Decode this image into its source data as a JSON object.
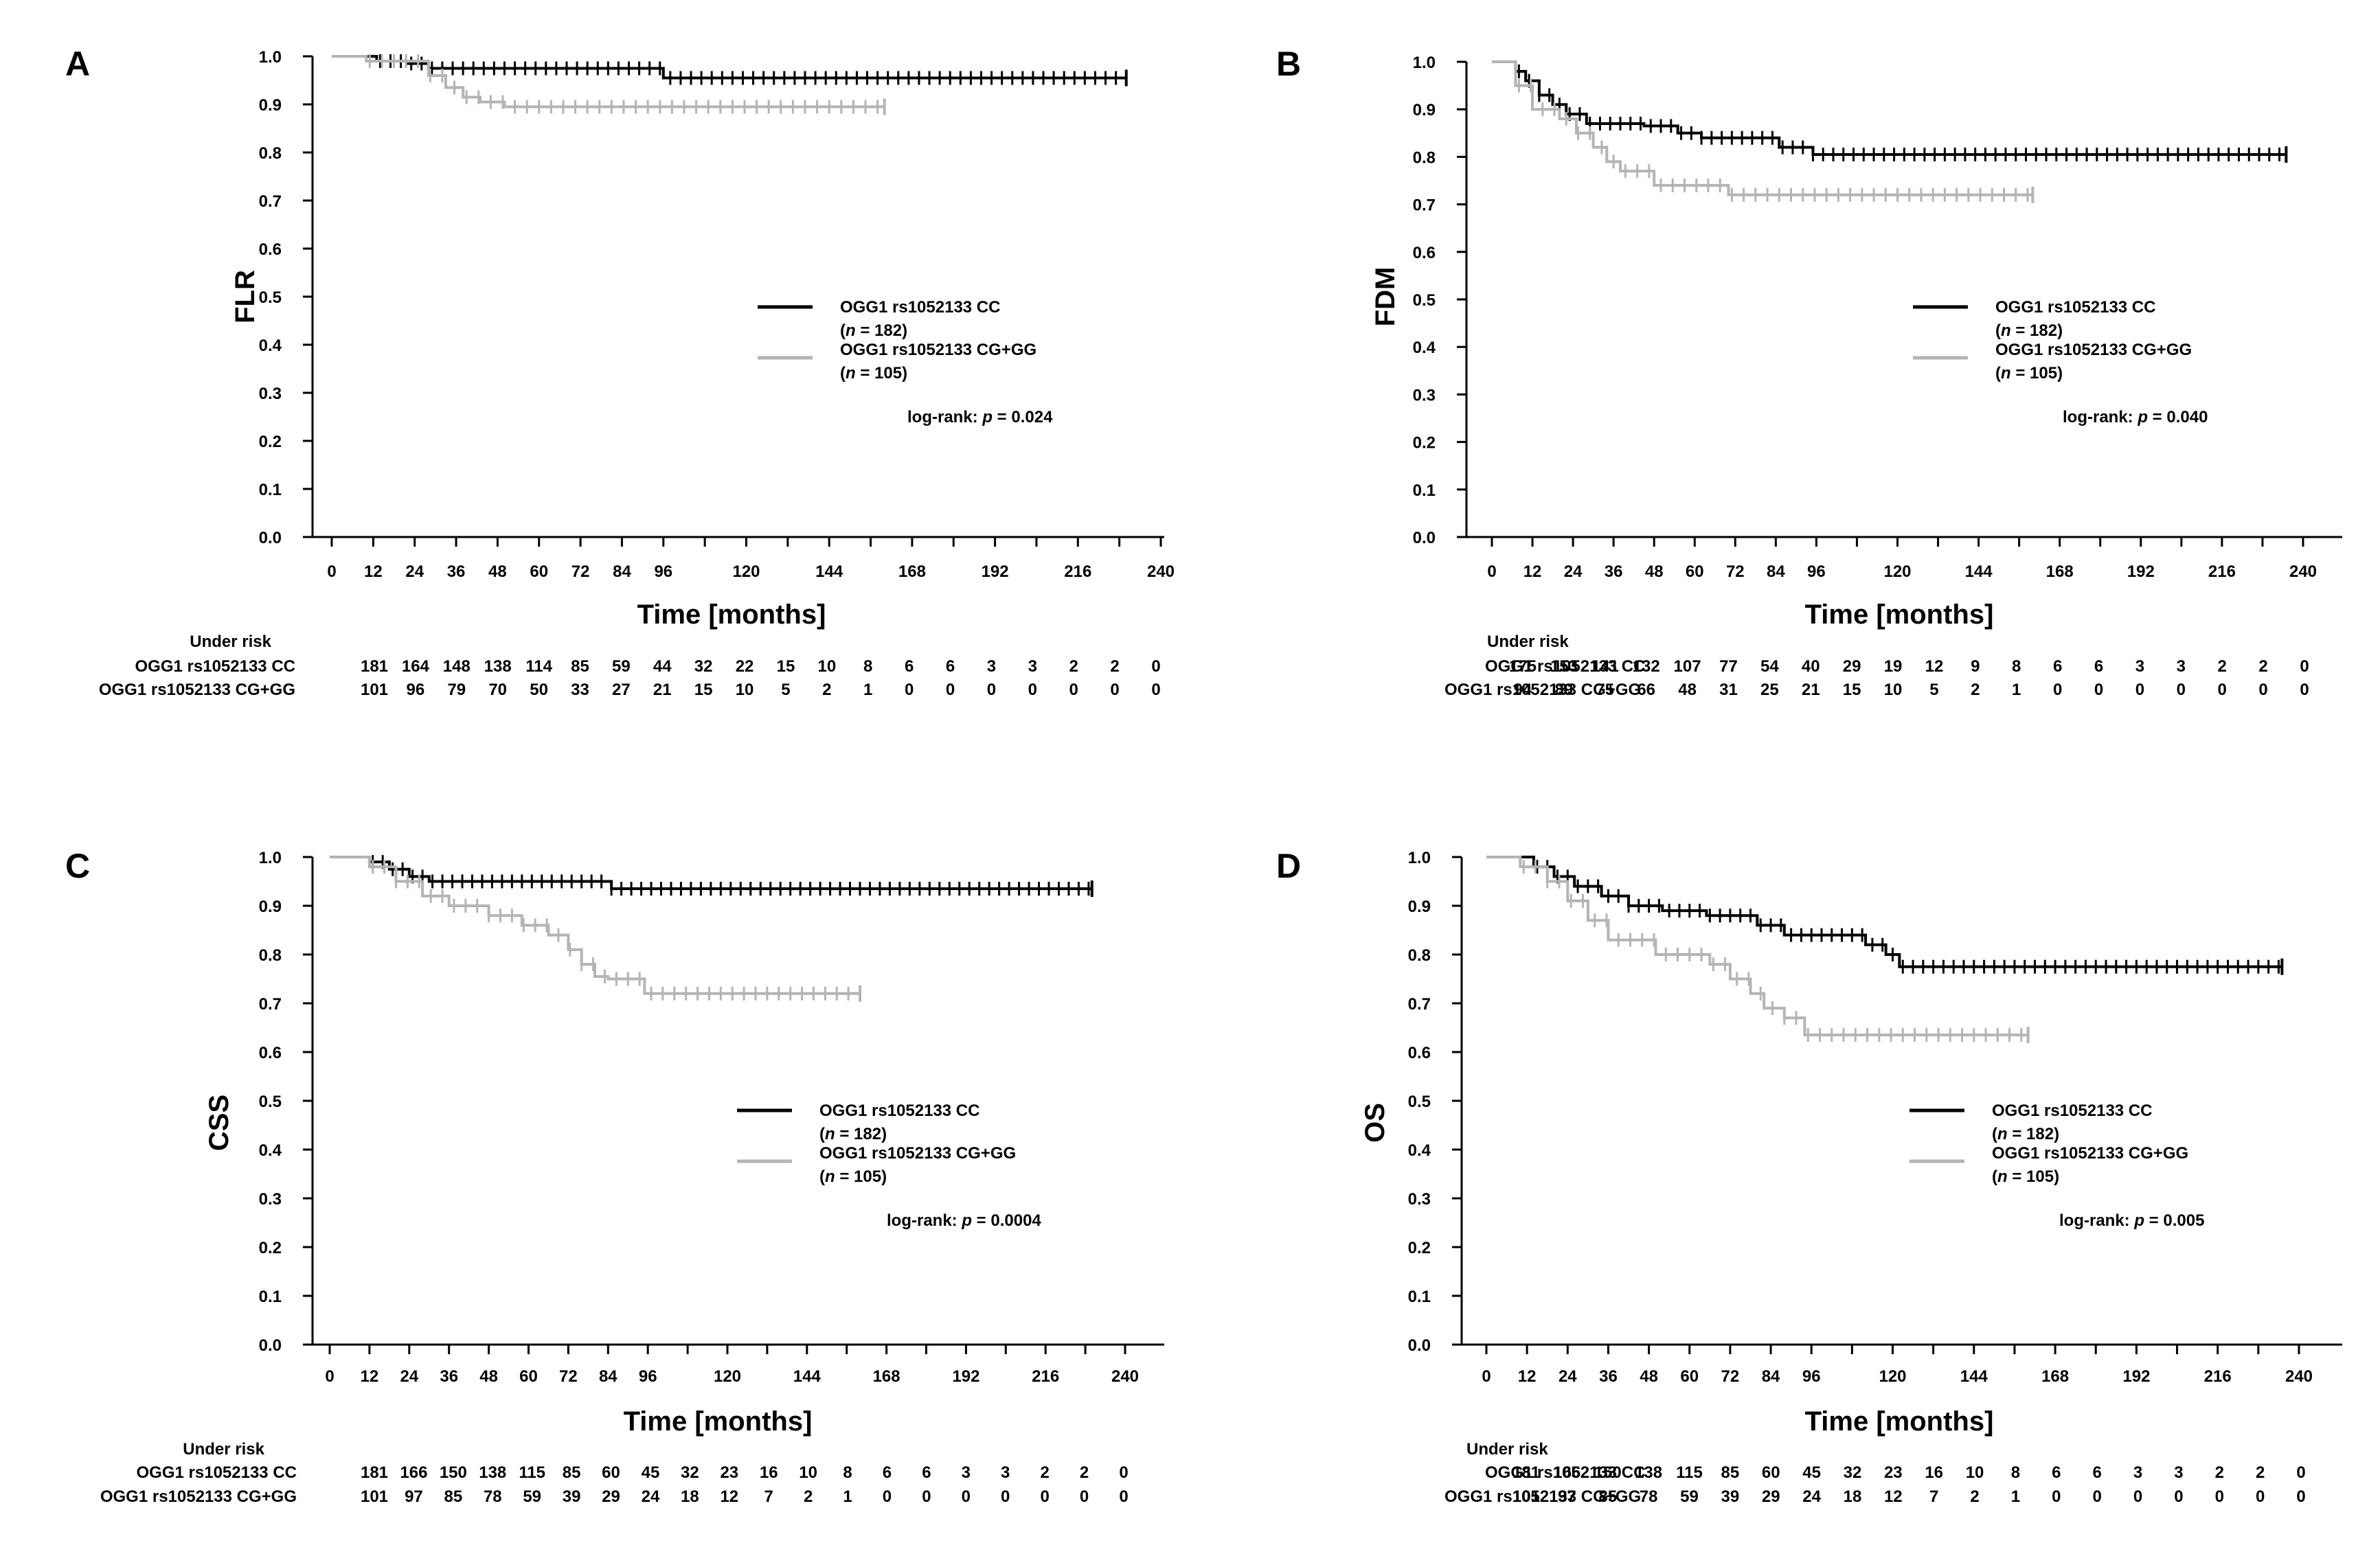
{
  "colors": {
    "cc": "#000000",
    "cg": "#b4b4b4"
  },
  "chart_data": [
    {
      "type": "line",
      "panel": "A",
      "ylabel": "FLR",
      "xlabel": "Time [months]",
      "ylim": [
        0,
        1
      ],
      "xlim": [
        0,
        240
      ],
      "yticks": [
        "0.0",
        "0.1",
        "0.2",
        "0.3",
        "0.4",
        "0.5",
        "0.6",
        "0.7",
        "0.8",
        "0.9",
        "1.0"
      ],
      "xticks": [
        "0",
        "12",
        "24",
        "36",
        "48",
        "60",
        "72",
        "84",
        "96",
        "120",
        "144",
        "168",
        "192",
        "216",
        "240"
      ],
      "series": [
        {
          "name": "OGG1 rs1052133 CC",
          "n": "182",
          "color": "#000000",
          "x": [
            0,
            13,
            22,
            28,
            96,
            230
          ],
          "y": [
            1.0,
            0.99,
            0.985,
            0.975,
            0.955,
            0.955
          ]
        },
        {
          "name": "OGG1 rs1052133 CG+GG",
          "n": "105",
          "color": "#b4b4b4",
          "x": [
            0,
            10,
            28,
            33,
            38,
            43,
            50,
            160
          ],
          "y": [
            1.0,
            0.99,
            0.96,
            0.935,
            0.915,
            0.905,
            0.895,
            0.895
          ]
        }
      ],
      "legend": {
        "cc_label": "OGG1 rs1052133 CC",
        "cc_n_prefix": "n",
        "cc_n_rest": "= 182",
        "cg_label": "OGG1 rs1052133 CG+GG",
        "cg_n_prefix": "n",
        "cg_n_rest": "= 105",
        "logrank": "log-rank: ",
        "p_symbol": "p",
        "p_value": " = 0.024"
      },
      "under_risk": {
        "title": "Under risk",
        "row1_label": "OGG1 rs1052133 CC",
        "row1": [
          "181",
          "164",
          "148",
          "138",
          "114",
          "85",
          "59",
          "44",
          "32",
          "22",
          "15",
          "10",
          "8",
          "6",
          "6",
          "3",
          "3",
          "2",
          "2",
          "0"
        ],
        "row2_label": "OGG1 rs1052133 CG+GG",
        "row2": [
          "101",
          "96",
          "79",
          "70",
          "50",
          "33",
          "27",
          "21",
          "15",
          "10",
          "5",
          "2",
          "1",
          "0",
          "0",
          "0",
          "0",
          "0",
          "0",
          "0"
        ]
      }
    },
    {
      "type": "line",
      "panel": "B",
      "ylabel": "FDM",
      "xlabel": "Time [months]",
      "ylim": [
        0,
        1
      ],
      "xlim": [
        0,
        240
      ],
      "yticks": [
        "0.0",
        "0.1",
        "0.2",
        "0.3",
        "0.4",
        "0.5",
        "0.6",
        "0.7",
        "0.8",
        "0.9",
        "1.0"
      ],
      "xticks": [
        "0",
        "12",
        "24",
        "36",
        "48",
        "60",
        "72",
        "84",
        "96",
        "120",
        "144",
        "168",
        "192",
        "216",
        "240"
      ],
      "series": [
        {
          "name": "OGG1 rs1052133 CC",
          "n": "182",
          "color": "#000000",
          "x": [
            0,
            7,
            10,
            14,
            18,
            22,
            28,
            45,
            55,
            62,
            85,
            95,
            235
          ],
          "y": [
            1.0,
            0.98,
            0.96,
            0.93,
            0.91,
            0.89,
            0.87,
            0.865,
            0.85,
            0.84,
            0.82,
            0.805,
            0.805
          ]
        },
        {
          "name": "OGG1 rs1052133 CG+GG",
          "n": "105",
          "color": "#b4b4b4",
          "x": [
            0,
            7,
            12,
            20,
            25,
            30,
            34,
            38,
            48,
            70,
            160
          ],
          "y": [
            1.0,
            0.95,
            0.9,
            0.88,
            0.85,
            0.82,
            0.79,
            0.77,
            0.74,
            0.72,
            0.72
          ]
        }
      ],
      "legend": {
        "cc_label": "OGG1 rs1052133 CC",
        "cc_n_prefix": "n",
        "cc_n_rest": "= 182",
        "cg_label": "OGG1 rs1052133 CG+GG",
        "cg_n_prefix": "n",
        "cg_n_rest": "= 105",
        "logrank": "log-rank: ",
        "p_symbol": "p",
        "p_value": " = 0.040"
      },
      "under_risk": {
        "title": "Under risk",
        "row1_label": "OGG1 rs1052133 CC",
        "row1": [
          "175",
          "153",
          "141",
          "132",
          "107",
          "77",
          "54",
          "40",
          "29",
          "19",
          "12",
          "9",
          "8",
          "6",
          "6",
          "3",
          "3",
          "2",
          "2",
          "0"
        ],
        "row2_label": "OGG1 rs1052133 CG+GG",
        "row2": [
          "94",
          "89",
          "75",
          "66",
          "48",
          "31",
          "25",
          "21",
          "15",
          "10",
          "5",
          "2",
          "1",
          "0",
          "0",
          "0",
          "0",
          "0",
          "0",
          "0"
        ]
      }
    },
    {
      "type": "line",
      "panel": "C",
      "ylabel": "CSS",
      "xlabel": "Time [months]",
      "ylim": [
        0,
        1
      ],
      "xlim": [
        0,
        240
      ],
      "yticks": [
        "0.0",
        "0.1",
        "0.2",
        "0.3",
        "0.4",
        "0.5",
        "0.6",
        "0.7",
        "0.8",
        "0.9",
        "1.0"
      ],
      "xticks": [
        "0",
        "12",
        "24",
        "36",
        "48",
        "60",
        "72",
        "84",
        "96",
        "120",
        "144",
        "168",
        "192",
        "216",
        "240"
      ],
      "series": [
        {
          "name": "OGG1 rs1052133 CC",
          "n": "182",
          "color": "#000000",
          "x": [
            0,
            12,
            18,
            24,
            30,
            85,
            230
          ],
          "y": [
            1.0,
            0.99,
            0.975,
            0.96,
            0.95,
            0.935,
            0.935
          ]
        },
        {
          "name": "OGG1 rs1052133 CG+GG",
          "n": "105",
          "color": "#b4b4b4",
          "x": [
            0,
            12,
            20,
            28,
            36,
            48,
            58,
            66,
            72,
            76,
            80,
            84,
            95,
            160
          ],
          "y": [
            1.0,
            0.98,
            0.95,
            0.92,
            0.9,
            0.88,
            0.86,
            0.84,
            0.81,
            0.78,
            0.755,
            0.75,
            0.72,
            0.72
          ]
        }
      ],
      "legend": {
        "cc_label": "OGG1 rs1052133 CC",
        "cc_n_prefix": "n",
        "cc_n_rest": "= 182",
        "cg_label": "OGG1 rs1052133 CG+GG",
        "cg_n_prefix": "n",
        "cg_n_rest": "= 105",
        "logrank": "log-rank: ",
        "p_symbol": "p",
        "p_value": " = 0.0004"
      },
      "under_risk": {
        "title": "Under risk",
        "row1_label": "OGG1 rs1052133 CC",
        "row1": [
          "181",
          "166",
          "150",
          "138",
          "115",
          "85",
          "60",
          "45",
          "32",
          "23",
          "16",
          "10",
          "8",
          "6",
          "6",
          "3",
          "3",
          "2",
          "2",
          "0"
        ],
        "row2_label": "OGG1 rs1052133 CG+GG",
        "row2": [
          "101",
          "97",
          "85",
          "78",
          "59",
          "39",
          "29",
          "24",
          "18",
          "12",
          "7",
          "2",
          "1",
          "0",
          "0",
          "0",
          "0",
          "0",
          "0",
          "0"
        ]
      }
    },
    {
      "type": "line",
      "panel": "D",
      "ylabel": "OS",
      "xlabel": "Time [months]",
      "ylim": [
        0,
        1
      ],
      "xlim": [
        0,
        240
      ],
      "yticks": [
        "0.0",
        "0.1",
        "0.2",
        "0.3",
        "0.4",
        "0.5",
        "0.6",
        "0.7",
        "0.8",
        "0.9",
        "1.0"
      ],
      "xticks": [
        "0",
        "12",
        "24",
        "36",
        "48",
        "60",
        "72",
        "84",
        "96",
        "120",
        "144",
        "168",
        "192",
        "216",
        "240"
      ],
      "series": [
        {
          "name": "OGG1 rs1052133 CC",
          "n": "182",
          "color": "#000000",
          "x": [
            0,
            14,
            20,
            26,
            34,
            42,
            52,
            65,
            80,
            88,
            112,
            118,
            122,
            235
          ],
          "y": [
            1.0,
            0.98,
            0.96,
            0.94,
            0.92,
            0.9,
            0.89,
            0.88,
            0.86,
            0.84,
            0.82,
            0.8,
            0.775,
            0.775
          ]
        },
        {
          "name": "OGG1 rs1052133 CG+GG",
          "n": "105",
          "color": "#b4b4b4",
          "x": [
            0,
            10,
            18,
            24,
            30,
            36,
            50,
            66,
            72,
            78,
            82,
            88,
            94,
            160
          ],
          "y": [
            1.0,
            0.98,
            0.95,
            0.91,
            0.87,
            0.83,
            0.8,
            0.78,
            0.75,
            0.72,
            0.69,
            0.67,
            0.635,
            0.635
          ]
        }
      ],
      "legend": {
        "cc_label": "OGG1 rs1052133 CC",
        "cc_n_prefix": "n",
        "cc_n_rest": "= 182",
        "cg_label": "OGG1 rs1052133 CG+GG",
        "cg_n_prefix": "n",
        "cg_n_rest": "= 105",
        "logrank": "log-rank: ",
        "p_symbol": "p",
        "p_value": " = 0.005"
      },
      "under_risk": {
        "title": "Under risk",
        "row1_label": "OGG1 rs1052133 CC",
        "row1": [
          "181",
          "166",
          "150",
          "138",
          "115",
          "85",
          "60",
          "45",
          "32",
          "23",
          "16",
          "10",
          "8",
          "6",
          "6",
          "3",
          "3",
          "2",
          "2",
          "0"
        ],
        "row2_label": "OGG1 rs1052133 CG+GG",
        "row2": [
          "101",
          "97",
          "85",
          "78",
          "59",
          "39",
          "29",
          "24",
          "18",
          "12",
          "7",
          "2",
          "1",
          "0",
          "0",
          "0",
          "0",
          "0",
          "0",
          "0"
        ]
      }
    }
  ]
}
